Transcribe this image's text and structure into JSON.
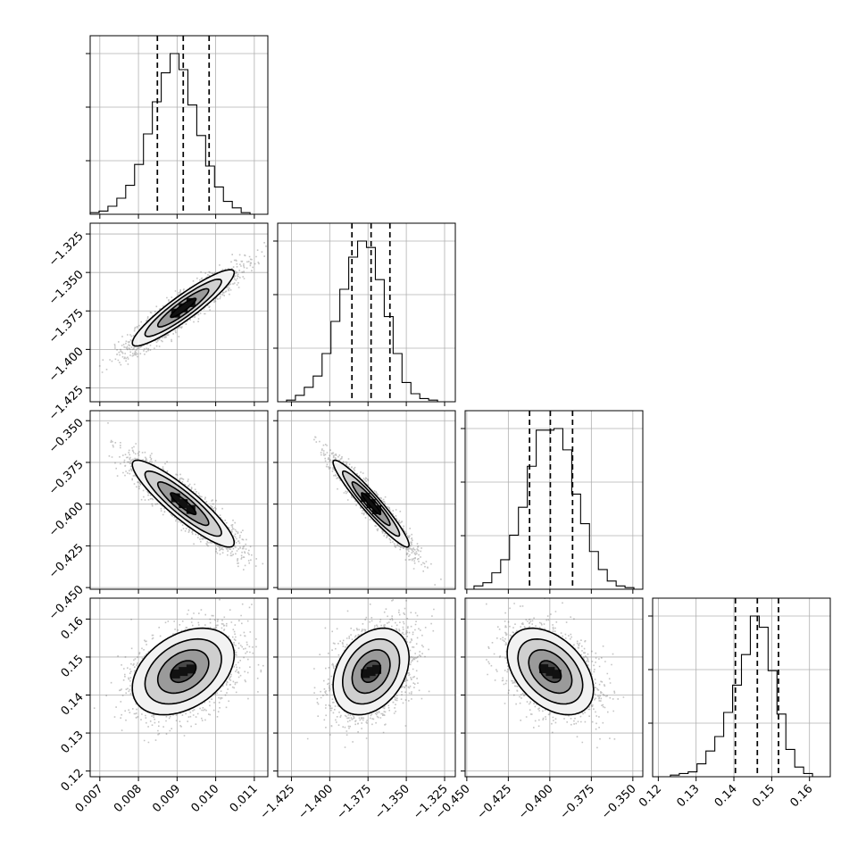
{
  "chart_data": {
    "type": "corner",
    "parameters": [
      {
        "ticks": [
          0.007,
          0.008,
          0.009,
          0.01,
          0.011
        ],
        "tick_labels": [
          "0.007",
          "0.008",
          "0.009",
          "0.010",
          "0.011"
        ],
        "range": [
          0.00675,
          0.01135
        ],
        "median": 0.00916,
        "q16": 0.00849,
        "q84": 0.00983,
        "sigma": 0.00066
      },
      {
        "ticks": [
          -1.425,
          -1.4,
          -1.375,
          -1.35,
          -1.325
        ],
        "tick_labels": [
          "−1.425",
          "−1.400",
          "−1.375",
          "−1.350",
          "−1.325"
        ],
        "range": [
          -1.434,
          -1.318
        ],
        "median": -1.373,
        "q16": -1.3855,
        "q84": -1.3607,
        "sigma": 0.0124
      },
      {
        "ticks": [
          -0.45,
          -0.425,
          -0.4,
          -0.375,
          -0.35
        ],
        "tick_labels": [
          "−0.450",
          "−0.425",
          "−0.400",
          "−0.375",
          "−0.350"
        ],
        "range": [
          -0.451,
          -0.344
        ],
        "median": -0.3997,
        "q16": -0.4122,
        "q84": -0.3863,
        "sigma": 0.013
      },
      {
        "ticks": [
          0.12,
          0.13,
          0.14,
          0.15,
          0.16
        ],
        "tick_labels": [
          "0.12",
          "0.13",
          "0.14",
          "0.15",
          "0.16"
        ],
        "range": [
          0.1185,
          0.1655
        ],
        "median": 0.1462,
        "q16": 0.1404,
        "q84": 0.1518,
        "sigma": 0.0057
      }
    ],
    "histograms": [
      [
        1,
        2,
        5,
        10,
        18,
        31,
        50,
        70,
        88,
        100,
        90,
        68,
        49,
        30,
        17,
        8,
        4,
        1,
        0,
        0
      ],
      [
        0,
        1,
        4,
        9,
        16,
        30,
        50,
        70,
        90,
        100,
        96,
        76,
        53,
        30,
        12,
        5,
        2,
        1,
        0,
        0
      ],
      [
        0,
        2,
        4,
        10,
        18,
        33,
        50,
        75,
        97,
        97,
        98,
        85,
        58,
        40,
        23,
        12,
        5,
        2,
        1,
        0
      ],
      [
        0,
        0,
        1,
        2,
        3,
        8,
        16,
        25,
        40,
        57,
        76,
        100,
        93,
        66,
        39,
        17,
        6,
        2,
        0,
        0
      ]
    ],
    "correlations": {
      "1,0": 0.92,
      "2,0": -0.9,
      "2,1": -0.95,
      "3,0": 0.38,
      "3,1": 0.32,
      "3,2": -0.42
    },
    "contour_levels_sigma": [
      0.5,
      1.0,
      1.5,
      2.0
    ],
    "grid": true
  }
}
